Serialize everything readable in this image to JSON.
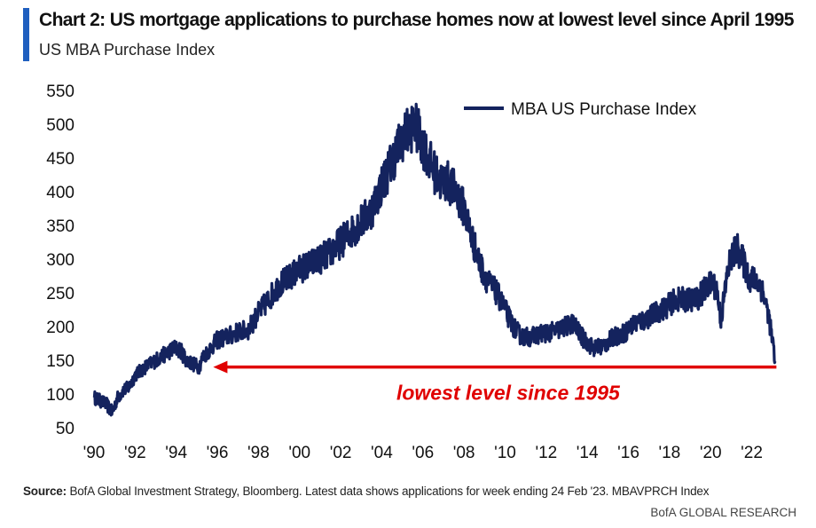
{
  "header": {
    "title": "Chart 2: US mortgage applications to purchase homes now at lowest level since April 1995",
    "subtitle": "US MBA Purchase Index"
  },
  "footer": {
    "source_label": "Source:",
    "source_text": "BofA Global Investment Strategy, Bloomberg. Latest data shows applications  for week ending 24 Feb '23. MBAVPRCH Index",
    "brand": "BofA GLOBAL RESEARCH"
  },
  "colors": {
    "series": "#14235e",
    "accent": "#1f5fbf",
    "annotation": "#e00000"
  },
  "chart_data": {
    "type": "line",
    "title": "Chart 2: US mortgage applications to purchase homes now at lowest level since April 1995",
    "subtitle": "US MBA Purchase Index",
    "xlabel": "",
    "ylabel": "",
    "xlim": [
      1990,
      2023.4
    ],
    "ylim": [
      50,
      550
    ],
    "x_ticks": [
      1990,
      1992,
      1994,
      1996,
      1998,
      2000,
      2002,
      2004,
      2006,
      2008,
      2010,
      2012,
      2014,
      2016,
      2018,
      2020,
      2022
    ],
    "x_tick_labels": [
      "'90",
      "'92",
      "'94",
      "'96",
      "'98",
      "'00",
      "'02",
      "'04",
      "'06",
      "'08",
      "'10",
      "'12",
      "'14",
      "'16",
      "'18",
      "'20",
      "'22"
    ],
    "y_ticks": [
      50,
      100,
      150,
      200,
      250,
      300,
      350,
      400,
      450,
      500,
      550
    ],
    "y_tick_labels": [
      "50",
      "100",
      "150",
      "200",
      "250",
      "300",
      "350",
      "400",
      "450",
      "500",
      "550"
    ],
    "grid": false,
    "legend_position": "top-right",
    "series": [
      {
        "name": "MBA US Purchase Index",
        "x": [
          1990.0,
          1990.3,
          1990.6,
          1990.9,
          1991.1,
          1991.4,
          1991.7,
          1992.0,
          1992.5,
          1993.0,
          1993.5,
          1993.9,
          1994.2,
          1994.5,
          1994.8,
          1995.1,
          1995.3,
          1995.6,
          1996.0,
          1996.5,
          1997.0,
          1997.5,
          1998.0,
          1998.5,
          1999.0,
          1999.5,
          2000.0,
          2000.5,
          2001.0,
          2001.5,
          2002.0,
          2002.5,
          2003.0,
          2003.5,
          2004.0,
          2004.5,
          2005.0,
          2005.3,
          2005.6,
          2006.0,
          2006.4,
          2006.8,
          2007.2,
          2007.6,
          2008.0,
          2008.4,
          2008.8,
          2009.2,
          2009.6,
          2010.0,
          2010.4,
          2010.8,
          2011.3,
          2011.8,
          2012.3,
          2012.8,
          2013.3,
          2013.8,
          2014.3,
          2014.8,
          2015.3,
          2015.8,
          2016.3,
          2016.8,
          2017.3,
          2017.8,
          2018.3,
          2018.8,
          2019.3,
          2019.8,
          2020.1,
          2020.3,
          2020.5,
          2020.8,
          2021.0,
          2021.3,
          2021.6,
          2021.9,
          2022.2,
          2022.5,
          2022.8,
          2023.0,
          2023.15
        ],
        "values": [
          95,
          90,
          85,
          72,
          92,
          105,
          110,
          128,
          140,
          150,
          160,
          168,
          165,
          150,
          145,
          140,
          155,
          165,
          180,
          185,
          192,
          195,
          220,
          240,
          262,
          272,
          285,
          292,
          300,
          310,
          325,
          340,
          355,
          372,
          410,
          445,
          480,
          490,
          500,
          470,
          440,
          415,
          415,
          400,
          375,
          330,
          290,
          265,
          250,
          225,
          200,
          185,
          185,
          190,
          192,
          198,
          205,
          182,
          168,
          172,
          185,
          190,
          205,
          210,
          220,
          228,
          240,
          240,
          240,
          258,
          265,
          255,
          210,
          275,
          305,
          315,
          295,
          270,
          270,
          255,
          220,
          180,
          145
        ]
      }
    ],
    "annotations": [
      {
        "text": "lowest level since 1995",
        "color": "#e00000",
        "arrow": {
          "from_x": 2023.2,
          "to_x": 1995.8,
          "y": 140
        }
      }
    ]
  }
}
